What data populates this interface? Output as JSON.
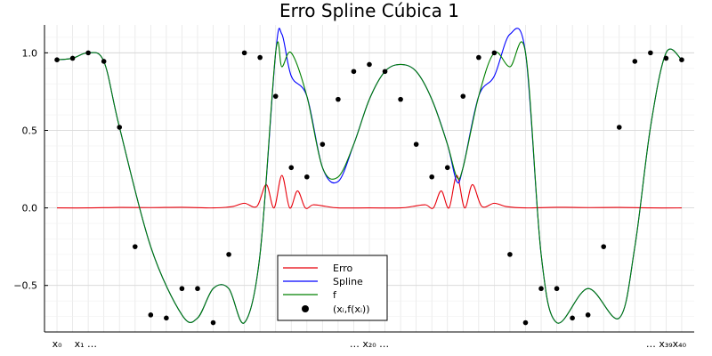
{
  "chart_data": {
    "type": "line",
    "title": "Erro Spline Cúbica 1",
    "xlabel": "",
    "ylabel": "",
    "xlim": [
      -0.02,
      1.02
    ],
    "ylim": [
      -0.8,
      1.18
    ],
    "grid": true,
    "legend_position": "bottom-center",
    "y_ticks": [
      {
        "value": 1.0,
        "label": "1.0"
      },
      {
        "value": 0.5,
        "label": "0.5"
      },
      {
        "value": 0.0,
        "label": "0.0"
      },
      {
        "value": -0.5,
        "label": "−0.5"
      }
    ],
    "x_tick_labels": [
      {
        "x": 0.0,
        "label": "x₀"
      },
      {
        "x": 0.046,
        "label": "x₁ …"
      },
      {
        "x": 0.5,
        "label": "… x₂₀ …"
      },
      {
        "x": 0.975,
        "label": "… x₃₉x₄₀"
      }
    ],
    "x_minor_gridlines": 40,
    "series": [
      {
        "name": "Erro",
        "color": "#e8000b",
        "x": [
          0.0,
          0.05,
          0.1,
          0.15,
          0.2,
          0.25,
          0.28,
          0.3,
          0.32,
          0.335,
          0.3475,
          0.36,
          0.3725,
          0.385,
          0.3975,
          0.41,
          0.43,
          0.45,
          0.5,
          0.55,
          0.57,
          0.59,
          0.6025,
          0.615,
          0.6275,
          0.64,
          0.6525,
          0.665,
          0.68,
          0.7,
          0.72,
          0.75,
          0.8,
          0.85,
          0.9,
          0.95,
          1.0
        ],
        "y": [
          0.0,
          0.0,
          0.003,
          0.002,
          0.004,
          0.0,
          0.008,
          0.03,
          0.01,
          0.15,
          0.0,
          0.21,
          0.0,
          0.11,
          0.0,
          0.02,
          0.01,
          0.0,
          0.0,
          0.0,
          0.01,
          0.02,
          0.0,
          0.11,
          0.0,
          0.21,
          0.0,
          0.15,
          0.01,
          0.03,
          0.008,
          0.0,
          0.004,
          0.002,
          0.003,
          0.0,
          0.0
        ]
      },
      {
        "name": "Spline",
        "color": "#0000ff",
        "x": [
          0.0,
          0.025,
          0.05,
          0.075,
          0.1,
          0.15,
          0.2,
          0.225,
          0.25,
          0.275,
          0.3,
          0.325,
          0.35,
          0.36,
          0.375,
          0.4,
          0.425,
          0.45,
          0.475,
          0.5,
          0.525,
          0.55,
          0.575,
          0.6,
          0.625,
          0.64,
          0.65,
          0.675,
          0.7,
          0.725,
          0.75,
          0.775,
          0.8,
          0.85,
          0.9,
          0.925,
          0.95,
          0.975,
          1.0
        ],
        "y": [
          0.955,
          0.965,
          1.0,
          0.945,
          0.52,
          -0.25,
          -0.69,
          -0.71,
          -0.52,
          -0.52,
          -0.74,
          -0.3,
          1.0,
          1.12,
          0.85,
          0.72,
          0.26,
          0.17,
          0.41,
          0.7,
          0.88,
          0.925,
          0.88,
          0.7,
          0.41,
          0.17,
          0.26,
          0.72,
          0.85,
          1.12,
          1.0,
          -0.3,
          -0.74,
          -0.52,
          -0.71,
          -0.25,
          0.52,
          1.0,
          0.955
        ]
      },
      {
        "name": "f",
        "color": "#008000",
        "x": [
          0.0,
          0.025,
          0.05,
          0.075,
          0.1,
          0.15,
          0.2,
          0.225,
          0.25,
          0.275,
          0.3,
          0.325,
          0.35,
          0.36,
          0.375,
          0.4,
          0.425,
          0.45,
          0.475,
          0.5,
          0.525,
          0.55,
          0.575,
          0.6,
          0.625,
          0.64,
          0.65,
          0.675,
          0.7,
          0.725,
          0.75,
          0.775,
          0.8,
          0.85,
          0.9,
          0.925,
          0.95,
          0.975,
          1.0
        ],
        "y": [
          0.955,
          0.965,
          1.0,
          0.945,
          0.52,
          -0.25,
          -0.69,
          -0.71,
          -0.52,
          -0.52,
          -0.74,
          -0.3,
          1.0,
          0.91,
          1.0,
          0.72,
          0.26,
          0.2,
          0.41,
          0.7,
          0.88,
          0.925,
          0.88,
          0.7,
          0.41,
          0.2,
          0.26,
          0.72,
          1.0,
          0.91,
          1.0,
          -0.3,
          -0.74,
          -0.52,
          -0.71,
          -0.25,
          0.52,
          1.0,
          0.955
        ]
      }
    ],
    "points": {
      "name": "(xᵢ,f(xᵢ))",
      "color": "#000000",
      "x": [
        0.0,
        0.025,
        0.05,
        0.075,
        0.1,
        0.125,
        0.15,
        0.175,
        0.2,
        0.225,
        0.25,
        0.275,
        0.3,
        0.325,
        0.35,
        0.375,
        0.4,
        0.425,
        0.45,
        0.475,
        0.5,
        0.525,
        0.55,
        0.575,
        0.6,
        0.625,
        0.65,
        0.675,
        0.7,
        0.725,
        0.75,
        0.775,
        0.8,
        0.825,
        0.85,
        0.875,
        0.9,
        0.925,
        0.95,
        0.975,
        1.0
      ],
      "y": [
        0.955,
        0.965,
        1.0,
        0.945,
        0.52,
        -0.25,
        -0.69,
        -0.71,
        -0.52,
        -0.52,
        -0.74,
        -0.3,
        1.0,
        0.97,
        0.72,
        0.26,
        0.2,
        0.41,
        0.7,
        0.88,
        0.925,
        0.88,
        0.7,
        0.41,
        0.2,
        0.26,
        0.72,
        0.97,
        1.0,
        -0.3,
        -0.74,
        -0.52,
        -0.52,
        -0.71,
        -0.69,
        -0.25,
        0.52,
        0.945,
        1.0,
        0.965,
        0.955
      ]
    }
  }
}
